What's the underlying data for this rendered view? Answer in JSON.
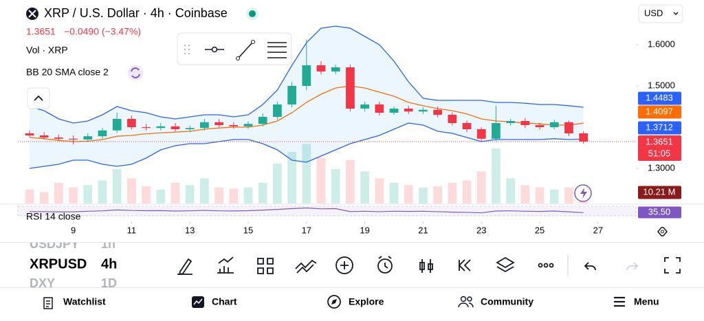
{
  "header": {
    "title": "XRP / U.S. Dollar · 4h · Coinbase",
    "currency": "USD",
    "price": "1.3651",
    "change": "−0.0490 (−3.47%)"
  },
  "legend": {
    "volume": "Vol · XRP",
    "bollinger": "BB 20 SMA close 2",
    "rsi": "RSI 14 close"
  },
  "chart_data": {
    "type": "candlestick",
    "x": [
      7.5,
      8,
      8.5,
      9,
      9.5,
      10,
      10.5,
      11,
      11.5,
      12,
      12.5,
      13,
      13.5,
      14,
      14.5,
      15,
      15.5,
      16,
      16.5,
      17,
      17.5,
      18,
      18.5,
      19,
      19.5,
      20,
      20.5,
      21,
      21.5,
      22,
      22.5,
      23,
      23.5,
      24,
      24.5,
      25,
      25.5,
      26,
      26.5
    ],
    "open": [
      1.385,
      1.38,
      1.375,
      1.372,
      1.37,
      1.378,
      1.392,
      1.42,
      1.4,
      1.398,
      1.402,
      1.395,
      1.398,
      1.412,
      1.405,
      1.402,
      1.408,
      1.425,
      1.455,
      1.5,
      1.55,
      1.535,
      1.545,
      1.445,
      1.455,
      1.435,
      1.445,
      1.438,
      1.442,
      1.43,
      1.41,
      1.395,
      1.372,
      1.41,
      1.415,
      1.405,
      1.4,
      1.412,
      1.385
    ],
    "high": [
      1.392,
      1.388,
      1.382,
      1.38,
      1.385,
      1.398,
      1.435,
      1.428,
      1.408,
      1.41,
      1.41,
      1.404,
      1.42,
      1.42,
      1.412,
      1.414,
      1.434,
      1.462,
      1.51,
      1.612,
      1.56,
      1.552,
      1.552,
      1.462,
      1.462,
      1.45,
      1.452,
      1.448,
      1.45,
      1.436,
      1.416,
      1.4,
      1.452,
      1.42,
      1.422,
      1.41,
      1.418,
      1.416,
      1.39
    ],
    "low": [
      1.376,
      1.37,
      1.366,
      1.358,
      1.364,
      1.372,
      1.386,
      1.394,
      1.392,
      1.392,
      1.39,
      1.388,
      1.392,
      1.4,
      1.396,
      1.396,
      1.402,
      1.418,
      1.448,
      1.49,
      1.528,
      1.528,
      1.438,
      1.438,
      1.428,
      1.43,
      1.432,
      1.432,
      1.424,
      1.404,
      1.388,
      1.366,
      1.366,
      1.404,
      1.398,
      1.394,
      1.395,
      1.378,
      1.36
    ],
    "close": [
      1.38,
      1.375,
      1.372,
      1.37,
      1.378,
      1.392,
      1.42,
      1.4,
      1.398,
      1.402,
      1.395,
      1.398,
      1.412,
      1.405,
      1.402,
      1.408,
      1.425,
      1.455,
      1.5,
      1.55,
      1.535,
      1.545,
      1.445,
      1.455,
      1.435,
      1.445,
      1.438,
      1.442,
      1.43,
      1.41,
      1.395,
      1.372,
      1.41,
      1.415,
      1.405,
      1.4,
      1.412,
      1.385,
      1.3651
    ],
    "up_color": "#22ab94",
    "down_color": "#f23645",
    "countdown": "51:05",
    "xlim": [
      7.1,
      28.3
    ],
    "xticks": [
      9,
      11,
      13,
      15,
      17,
      19,
      21,
      23,
      25,
      27
    ],
    "ylim": [
      1.22,
      1.7
    ],
    "yticks": [
      {
        "value": 1.3,
        "label": "1.3000"
      },
      {
        "value": 1.5,
        "label": "1.5000"
      },
      {
        "value": 1.6,
        "label": "1.6000"
      }
    ],
    "bollinger": {
      "upper_color": "#2962ff",
      "middle_color": "#ff6d00",
      "upper": [
        1.45,
        1.44,
        1.42,
        1.41,
        1.415,
        1.43,
        1.45,
        1.44,
        1.435,
        1.425,
        1.42,
        1.425,
        1.43,
        1.43,
        1.425,
        1.43,
        1.455,
        1.49,
        1.55,
        1.605,
        1.64,
        1.645,
        1.64,
        1.62,
        1.6,
        1.56,
        1.51,
        1.47,
        1.465,
        1.465,
        1.465,
        1.465,
        1.46,
        1.46,
        1.458,
        1.455,
        1.455,
        1.452,
        1.4483
      ],
      "middle": [
        1.375,
        1.372,
        1.368,
        1.365,
        1.366,
        1.37,
        1.378,
        1.38,
        1.384,
        1.386,
        1.388,
        1.39,
        1.395,
        1.398,
        1.4,
        1.4,
        1.405,
        1.415,
        1.435,
        1.46,
        1.48,
        1.495,
        1.5,
        1.495,
        1.485,
        1.475,
        1.46,
        1.452,
        1.445,
        1.44,
        1.432,
        1.42,
        1.415,
        1.413,
        1.41,
        1.408,
        1.405,
        1.405,
        1.4097
      ],
      "lower": [
        1.3,
        1.305,
        1.31,
        1.32,
        1.32,
        1.31,
        1.305,
        1.31,
        1.325,
        1.345,
        1.355,
        1.36,
        1.36,
        1.365,
        1.37,
        1.37,
        1.36,
        1.345,
        1.32,
        1.315,
        1.33,
        1.345,
        1.36,
        1.37,
        1.38,
        1.395,
        1.41,
        1.405,
        1.39,
        1.385,
        1.375,
        1.365,
        1.37,
        1.37,
        1.37,
        1.37,
        1.372,
        1.37,
        1.3712
      ]
    },
    "volume": {
      "ylim": [
        0,
        120
      ],
      "last_label": "10.21 M",
      "values": [
        12,
        10,
        18,
        14,
        16,
        20,
        30,
        22,
        15,
        12,
        18,
        16,
        22,
        14,
        13,
        14,
        18,
        35,
        45,
        52,
        40,
        30,
        38,
        28,
        22,
        18,
        16,
        14,
        15,
        18,
        20,
        28,
        48,
        22,
        16,
        14,
        12,
        14,
        10.21
      ]
    },
    "rsi": {
      "ylim": [
        0,
        100
      ],
      "color": "#7e57c2",
      "last_label": "35.50",
      "values": [
        45,
        44,
        42,
        43,
        48,
        52,
        60,
        55,
        53,
        54,
        50,
        52,
        56,
        52,
        51,
        53,
        58,
        65,
        72,
        78,
        70,
        72,
        45,
        48,
        44,
        48,
        46,
        48,
        44,
        40,
        38,
        34,
        50,
        52,
        48,
        46,
        50,
        42,
        35.5
      ]
    }
  },
  "symbols": [
    {
      "name": "USDJPY",
      "interval": "1h"
    },
    {
      "name": "XRPUSD",
      "interval": "4h"
    },
    {
      "name": "DXY",
      "interval": "1D"
    }
  ],
  "nav": [
    "Watchlist",
    "Chart",
    "Explore",
    "Community",
    "Menu"
  ]
}
